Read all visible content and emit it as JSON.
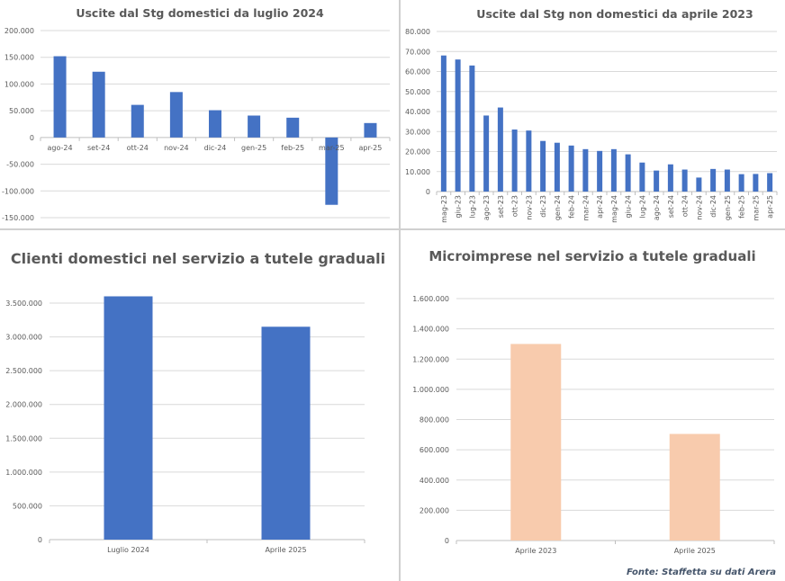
{
  "chart_data": [
    {
      "type": "bar",
      "title": "Uscite dal Stg domestici da luglio 2024",
      "categories": [
        "ago-24",
        "set-24",
        "ott-24",
        "nov-24",
        "dic-24",
        "gen-25",
        "feb-25",
        "mar-25",
        "apr-25"
      ],
      "values": [
        152000,
        123000,
        61000,
        85000,
        51000,
        41000,
        37000,
        -126000,
        27000
      ],
      "yticks": [
        200000,
        150000,
        100000,
        50000,
        0,
        -50000,
        -100000,
        -150000
      ],
      "ytick_labels": [
        "200.000",
        "150.000",
        "100.000",
        "50.000",
        "0",
        "-50.000",
        "-100.000",
        "-150.000"
      ],
      "ylim": [
        -150000,
        200000
      ],
      "grid": true,
      "color": "#4472c4"
    },
    {
      "type": "bar",
      "title": "Uscite dal Stg non domestici da aprile 2023",
      "categories": [
        "mag-23",
        "giu-23",
        "lug-23",
        "ago-23",
        "set-23",
        "ott-23",
        "nov-23",
        "dic-23",
        "gen-24",
        "feb-24",
        "mar-24",
        "apr-24",
        "mag-24",
        "giu-24",
        "lug-24",
        "ago-24",
        "set-24",
        "ott-24",
        "nov-24",
        "dic-24",
        "gen-25",
        "feb-25",
        "mar-25",
        "apr-25"
      ],
      "values": [
        68000,
        66000,
        63000,
        38000,
        42000,
        31000,
        30500,
        25300,
        24400,
        23000,
        21200,
        20300,
        21200,
        18600,
        14500,
        10500,
        13600,
        11000,
        7000,
        11300,
        11000,
        8700,
        8800,
        9200
      ],
      "yticks": [
        80000,
        70000,
        60000,
        50000,
        40000,
        30000,
        20000,
        10000,
        0
      ],
      "ytick_labels": [
        "80.000",
        "70.000",
        "60.000",
        "50.000",
        "40.000",
        "30.000",
        "20.000",
        "10.000",
        "0"
      ],
      "ylim": [
        0,
        80000
      ],
      "grid": true,
      "color": "#4472c4"
    },
    {
      "type": "bar",
      "title": "Clienti domestici nel servizio a tutele graduali",
      "categories": [
        "Luglio 2024",
        "Aprile 2025"
      ],
      "values": [
        3600000,
        3150000
      ],
      "yticks": [
        3500000,
        3000000,
        2500000,
        2000000,
        1500000,
        1000000,
        500000,
        0
      ],
      "ytick_labels": [
        "3.500.000",
        "3.000.000",
        "2.500.000",
        "2.000.000",
        "1.500.000",
        "1.000.000",
        "500.000",
        "0"
      ],
      "ylim": [
        0,
        3500000
      ],
      "grid": true,
      "color": "#4472c4"
    },
    {
      "type": "bar",
      "title": "Microimprese nel servizio a tutele graduali",
      "categories": [
        "Aprile 2023",
        "Aprile 2025"
      ],
      "values": [
        1300000,
        705000
      ],
      "yticks": [
        1600000,
        1400000,
        1200000,
        1000000,
        800000,
        600000,
        400000,
        200000,
        0
      ],
      "ytick_labels": [
        "1.600.000",
        "1.400.000",
        "1.200.000",
        "1.000.000",
        "800.000",
        "600.000",
        "400.000",
        "200.000",
        "0"
      ],
      "ylim": [
        0,
        1600000
      ],
      "grid": true,
      "color": "#f8cbad"
    }
  ],
  "source": "Fonte: Staffetta su dati Arera"
}
